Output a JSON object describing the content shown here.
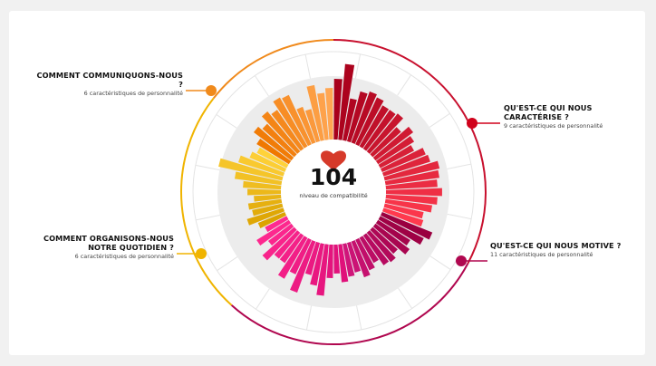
{
  "chart_data": {
    "type": "radial-bar",
    "center_value": "104",
    "center_label": "niveau de compatibilité",
    "center_icon": "heart-icon",
    "groups": [
      {
        "title": "QU'EST-CE QUI NOUS CARACTÉRISE ?",
        "subtitle": "9 caractéristiques de personnalité",
        "color": "#d0021b",
        "bar_colors": [
          "#a8001c",
          "#ff3a4e"
        ],
        "values": [
          67,
          84,
          47,
          57,
          60,
          57,
          52,
          52,
          54,
          42,
          52,
          47,
          42,
          52,
          54,
          62,
          60,
          57,
          62,
          57,
          52,
          44,
          46
        ]
      },
      {
        "title": "QU'EST-CE QUI NOUS MOTIVE ?",
        "subtitle": "11 caractéristiques de personnalité",
        "color": "#b0074f",
        "bar_colors": [
          "#9a0040",
          "#d0157a"
        ],
        "values": [
          60,
          54,
          42,
          47,
          37,
          42,
          40,
          32,
          37,
          42,
          34,
          37
        ]
      },
      {
        "title": "",
        "subtitle": "",
        "color": "#b0074f",
        "bar_colors": [
          "#e0107a",
          "#ff2a90"
        ],
        "values": [
          42,
          32,
          37,
          57,
          47,
          37,
          60,
          42,
          52,
          37,
          37,
          47,
          32,
          42,
          27
        ]
      },
      {
        "title": "COMMENT ORGANISONS-NOUS NOTRE QUOTIDIEN ?",
        "subtitle": "6 caractéristiques de personnalité",
        "color": "#f0b400",
        "bar_colors": [
          "#dca300",
          "#ffd23a"
        ],
        "values": [
          32,
          42,
          34,
          37,
          30,
          37,
          42,
          52,
          72,
          52,
          42,
          37
        ]
      },
      {
        "title": "COMMENT COMMUNIQUONS-NOUS ?",
        "subtitle": "6 caractéristiques de personnalité",
        "color": "#f08a1c",
        "bar_colors": [
          "#f07800",
          "#ffa652"
        ],
        "values": [
          42,
          52,
          47,
          57,
          52,
          62,
          60,
          42,
          37,
          62,
          52,
          57
        ]
      }
    ]
  }
}
